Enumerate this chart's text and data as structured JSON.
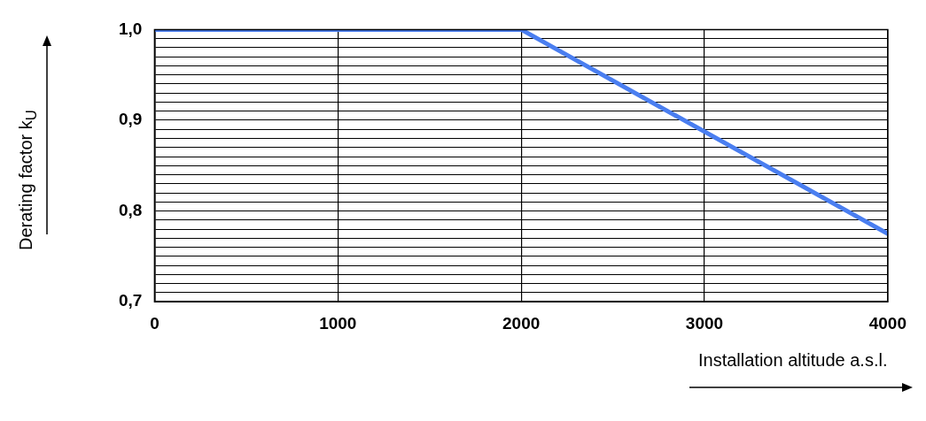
{
  "chart_data": {
    "type": "line",
    "xlabel": "Installation altitude a.s.l.",
    "ylabel": "Derating factor k$_{U}$",
    "x": [
      0,
      2000,
      4000
    ],
    "series": [
      {
        "color": "#4a7ef0",
        "values": [
          1.0,
          1.0,
          0.775
        ]
      }
    ],
    "xlim": [
      0,
      4000
    ],
    "xticks": [
      0,
      1000,
      2000,
      3000,
      4000
    ],
    "ylim": [
      0.7,
      1.0
    ],
    "yticks": [
      {
        "value": 0.7,
        "label": "0,7"
      },
      {
        "value": 0.71,
        "label": null
      },
      {
        "value": 0.72,
        "label": null
      },
      {
        "value": 0.73,
        "label": null
      },
      {
        "value": 0.74,
        "label": null
      },
      {
        "value": 0.75,
        "label": null
      },
      {
        "value": 0.76,
        "label": null
      },
      {
        "value": 0.77,
        "label": null
      },
      {
        "value": 0.78,
        "label": null
      },
      {
        "value": 0.79,
        "label": null
      },
      {
        "value": 0.8,
        "label": "0,8"
      },
      {
        "value": 0.81,
        "label": null
      },
      {
        "value": 0.82,
        "label": null
      },
      {
        "value": 0.83,
        "label": null
      },
      {
        "value": 0.84,
        "label": null
      },
      {
        "value": 0.85,
        "label": null
      },
      {
        "value": 0.86,
        "label": null
      },
      {
        "value": 0.87,
        "label": null
      },
      {
        "value": 0.88,
        "label": null
      },
      {
        "value": 0.89,
        "label": null
      },
      {
        "value": 0.9,
        "label": "0,9"
      },
      {
        "value": 0.91,
        "label": null
      },
      {
        "value": 0.92,
        "label": null
      },
      {
        "value": 0.93,
        "label": null
      },
      {
        "value": 0.94,
        "label": null
      },
      {
        "value": 0.95,
        "label": null
      },
      {
        "value": 0.96,
        "label": null
      },
      {
        "value": 0.97,
        "label": null
      },
      {
        "value": 0.98,
        "label": null
      },
      {
        "value": 0.99,
        "label": null
      },
      {
        "value": 1.0,
        "label": "1,0"
      }
    ],
    "grid": true,
    "legend": false,
    "marker": "none",
    "line_style": "solid"
  }
}
